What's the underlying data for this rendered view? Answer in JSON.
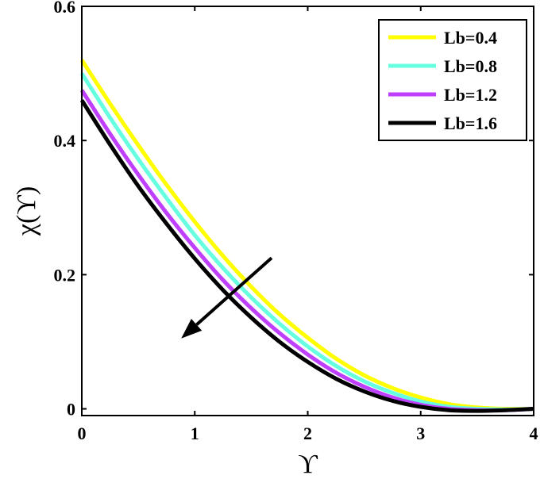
{
  "chart_data": {
    "type": "line",
    "title": "",
    "xlabel": "ϒ",
    "ylabel": "χ(ϒ)",
    "xlim": [
      0,
      4
    ],
    "ylim": [
      -0.01,
      0.6
    ],
    "xticks": [
      0,
      1,
      2,
      3,
      4
    ],
    "xtick_labels": [
      "0",
      "1",
      "2",
      "3",
      "4"
    ],
    "yticks": [
      0,
      0.2,
      0.4,
      0.6
    ],
    "ytick_labels": [
      "0",
      "0.2",
      "0.4",
      "0.6"
    ],
    "grid": false,
    "legend_position": "top-right",
    "x": [
      0,
      0.25,
      0.5,
      0.75,
      1.0,
      1.25,
      1.5,
      1.75,
      2.0,
      2.25,
      2.5,
      2.75,
      3.0,
      3.25,
      3.5,
      3.75,
      4.0
    ],
    "series": [
      {
        "name": "Lb=0.4",
        "color": "#ffff00",
        "values": [
          0.52,
          0.455,
          0.393,
          0.334,
          0.279,
          0.228,
          0.182,
          0.141,
          0.106,
          0.075,
          0.05,
          0.031,
          0.017,
          0.007,
          0.002,
          0.0,
          0.0
        ]
      },
      {
        "name": "Lb=0.8",
        "color": "#66ffe0",
        "values": [
          0.5,
          0.434,
          0.372,
          0.314,
          0.259,
          0.21,
          0.166,
          0.127,
          0.093,
          0.064,
          0.041,
          0.024,
          0.011,
          0.003,
          0.0,
          -0.001,
          0.0
        ]
      },
      {
        "name": "Lb=1.2",
        "color": "#bf3fff",
        "values": [
          0.475,
          0.41,
          0.349,
          0.292,
          0.24,
          0.192,
          0.15,
          0.113,
          0.081,
          0.054,
          0.033,
          0.017,
          0.006,
          0.0,
          -0.002,
          -0.002,
          0.0
        ]
      },
      {
        "name": "Lb=1.6",
        "color": "#000000",
        "values": [
          0.46,
          0.394,
          0.332,
          0.276,
          0.224,
          0.177,
          0.136,
          0.1,
          0.07,
          0.045,
          0.026,
          0.012,
          0.003,
          -0.002,
          -0.003,
          -0.002,
          0.0
        ]
      }
    ],
    "annotations": [
      {
        "type": "arrow",
        "from": [
          1.68,
          0.225
        ],
        "to": [
          0.88,
          0.105
        ],
        "color": "#000000"
      }
    ]
  }
}
